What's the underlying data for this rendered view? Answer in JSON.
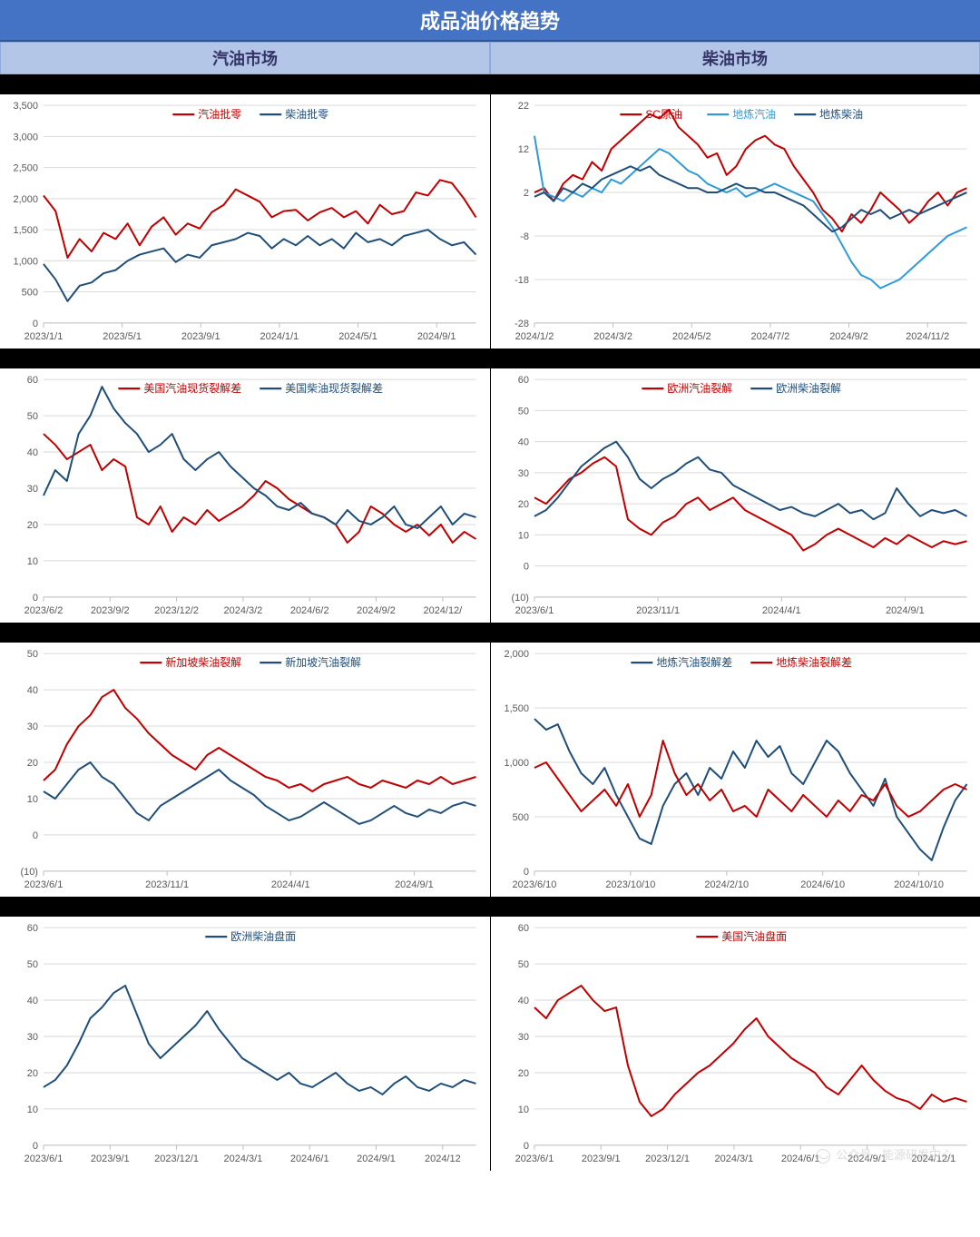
{
  "mainTitle": "成品油价格趋势",
  "subHeaders": {
    "left": "汽油市场",
    "right": "柴油市场"
  },
  "watermark": "公众号 · 能源研发中心",
  "colors": {
    "red": "#c00000",
    "blue": "#1f4e79",
    "lightblue": "#2e9bd6",
    "grid": "#d9d9d9",
    "axis": "#bfbfbf",
    "text": "#595959",
    "negRed": "#c00000"
  },
  "charts": [
    {
      "id": "c1",
      "ymin": 0,
      "ymax": 3500,
      "ystep": 500,
      "xticks": [
        "2023/1/1",
        "2023/5/1",
        "2023/9/1",
        "2024/1/1",
        "2024/5/1",
        "2024/9/1"
      ],
      "series": [
        {
          "name": "汽油批零",
          "color": "#c00000",
          "pts": [
            2050,
            1800,
            1050,
            1350,
            1150,
            1450,
            1350,
            1600,
            1250,
            1550,
            1700,
            1420,
            1600,
            1520,
            1780,
            1900,
            2150,
            2050,
            1950,
            1700,
            1800,
            1820,
            1650,
            1780,
            1850,
            1700,
            1800,
            1600,
            1900,
            1750,
            1800,
            2100,
            2050,
            2300,
            2250,
            2000,
            1700
          ]
        },
        {
          "name": "柴油批零",
          "color": "#1f4e79",
          "pts": [
            950,
            700,
            350,
            600,
            650,
            800,
            850,
            1000,
            1100,
            1150,
            1200,
            980,
            1100,
            1050,
            1250,
            1300,
            1350,
            1450,
            1400,
            1200,
            1350,
            1250,
            1400,
            1250,
            1350,
            1200,
            1450,
            1300,
            1350,
            1250,
            1400,
            1450,
            1500,
            1350,
            1250,
            1300,
            1100
          ]
        }
      ]
    },
    {
      "id": "c2",
      "ymin": -28,
      "ymax": 22,
      "ystep": 10,
      "yticks": [
        -28,
        -18,
        -8,
        2,
        12,
        22
      ],
      "xticks": [
        "2024/1/2",
        "2024/3/2",
        "2024/5/2",
        "2024/7/2",
        "2024/9/2",
        "2024/11/2"
      ],
      "series": [
        {
          "name": "SC原油",
          "color": "#c00000",
          "pts": [
            2,
            3,
            0,
            4,
            6,
            5,
            9,
            7,
            12,
            14,
            16,
            18,
            20,
            19,
            21,
            17,
            15,
            13,
            10,
            11,
            6,
            8,
            12,
            14,
            15,
            13,
            12,
            8,
            5,
            2,
            -2,
            -4,
            -7,
            -3,
            -5,
            -2,
            2,
            0,
            -2,
            -5,
            -3,
            0,
            2,
            -1,
            2,
            3
          ]
        },
        {
          "name": "地炼汽油",
          "color": "#2e9bd6",
          "pts": [
            15,
            2,
            1,
            0,
            2,
            1,
            3,
            2,
            5,
            4,
            6,
            8,
            10,
            12,
            11,
            9,
            7,
            6,
            4,
            3,
            2,
            3,
            1,
            2,
            3,
            4,
            3,
            2,
            1,
            0,
            -3,
            -6,
            -10,
            -14,
            -17,
            -18,
            -20,
            -19,
            -18,
            -16,
            -14,
            -12,
            -10,
            -8,
            -7,
            -6
          ]
        },
        {
          "name": "地炼柴油",
          "color": "#1f4e79",
          "pts": [
            1,
            2,
            0,
            3,
            2,
            4,
            3,
            5,
            6,
            7,
            8,
            7,
            8,
            6,
            5,
            4,
            3,
            3,
            2,
            2,
            3,
            4,
            3,
            3,
            2,
            2,
            1,
            0,
            -1,
            -3,
            -5,
            -7,
            -6,
            -4,
            -2,
            -3,
            -2,
            -4,
            -3,
            -2,
            -3,
            -2,
            -1,
            0,
            1,
            2
          ]
        }
      ]
    },
    {
      "id": "c3",
      "ymin": 0,
      "ymax": 60,
      "ystep": 10,
      "xticks": [
        "2023/6/2",
        "2023/9/2",
        "2023/12/2",
        "2024/3/2",
        "2024/6/2",
        "2024/9/2",
        "2024/12/"
      ],
      "series": [
        {
          "name": "美国汽油现货裂解差",
          "color": "#c00000",
          "pts": [
            45,
            42,
            38,
            40,
            42,
            35,
            38,
            36,
            22,
            20,
            25,
            18,
            22,
            20,
            24,
            21,
            23,
            25,
            28,
            32,
            30,
            27,
            25,
            23,
            22,
            20,
            15,
            18,
            25,
            23,
            20,
            18,
            20,
            17,
            20,
            15,
            18,
            16
          ]
        },
        {
          "name": "美国柴油现货裂解差",
          "color": "#1f4e79",
          "pts": [
            28,
            35,
            32,
            45,
            50,
            58,
            52,
            48,
            45,
            40,
            42,
            45,
            38,
            35,
            38,
            40,
            36,
            33,
            30,
            28,
            25,
            24,
            26,
            23,
            22,
            20,
            24,
            21,
            20,
            22,
            25,
            20,
            19,
            22,
            25,
            20,
            23,
            22
          ]
        }
      ]
    },
    {
      "id": "c4",
      "ymin": -10,
      "ymax": 60,
      "ystep": 10,
      "negBottom": true,
      "xticks": [
        "2023/6/1",
        "2023/11/1",
        "2024/4/1",
        "2024/9/1"
      ],
      "series": [
        {
          "name": "欧洲汽油裂解",
          "color": "#c00000",
          "pts": [
            22,
            20,
            24,
            28,
            30,
            33,
            35,
            32,
            15,
            12,
            10,
            14,
            16,
            20,
            22,
            18,
            20,
            22,
            18,
            16,
            14,
            12,
            10,
            5,
            7,
            10,
            12,
            10,
            8,
            6,
            9,
            7,
            10,
            8,
            6,
            8,
            7,
            8
          ]
        },
        {
          "name": "欧洲柴油裂解",
          "color": "#1f4e79",
          "pts": [
            16,
            18,
            22,
            27,
            32,
            35,
            38,
            40,
            35,
            28,
            25,
            28,
            30,
            33,
            35,
            31,
            30,
            26,
            24,
            22,
            20,
            18,
            19,
            17,
            16,
            18,
            20,
            17,
            18,
            15,
            17,
            25,
            20,
            16,
            18,
            17,
            18,
            16
          ]
        }
      ]
    },
    {
      "id": "c5",
      "ymin": -10,
      "ymax": 50,
      "ystep": 10,
      "negBottom": true,
      "xticks": [
        "2023/6/1",
        "2023/11/1",
        "2024/4/1",
        "2024/9/1"
      ],
      "series": [
        {
          "name": "新加坡柴油裂解",
          "color": "#c00000",
          "pts": [
            15,
            18,
            25,
            30,
            33,
            38,
            40,
            35,
            32,
            28,
            25,
            22,
            20,
            18,
            22,
            24,
            22,
            20,
            18,
            16,
            15,
            13,
            14,
            12,
            14,
            15,
            16,
            14,
            13,
            15,
            14,
            13,
            15,
            14,
            16,
            14,
            15,
            16
          ]
        },
        {
          "name": "新加坡汽油裂解",
          "color": "#1f4e79",
          "pts": [
            12,
            10,
            14,
            18,
            20,
            16,
            14,
            10,
            6,
            4,
            8,
            10,
            12,
            14,
            16,
            18,
            15,
            13,
            11,
            8,
            6,
            4,
            5,
            7,
            9,
            7,
            5,
            3,
            4,
            6,
            8,
            6,
            5,
            7,
            6,
            8,
            9,
            8
          ]
        }
      ]
    },
    {
      "id": "c6",
      "ymin": 0,
      "ymax": 2000,
      "ystep": 500,
      "xticks": [
        "2023/6/10",
        "2023/10/10",
        "2024/2/10",
        "2024/6/10",
        "2024/10/10"
      ],
      "series": [
        {
          "name": "地炼汽油裂解差",
          "color": "#1f4e79",
          "pts": [
            1400,
            1300,
            1350,
            1100,
            900,
            800,
            950,
            700,
            500,
            300,
            250,
            600,
            800,
            900,
            700,
            950,
            850,
            1100,
            950,
            1200,
            1050,
            1150,
            900,
            800,
            1000,
            1200,
            1100,
            900,
            750,
            600,
            850,
            500,
            350,
            200,
            100,
            400,
            650,
            800
          ]
        },
        {
          "name": "地炼柴油裂解差",
          "color": "#c00000",
          "pts": [
            950,
            1000,
            850,
            700,
            550,
            650,
            750,
            600,
            800,
            500,
            700,
            1200,
            900,
            700,
            800,
            650,
            750,
            550,
            600,
            500,
            750,
            650,
            550,
            700,
            600,
            500,
            650,
            550,
            700,
            650,
            800,
            600,
            500,
            550,
            650,
            750,
            800,
            750
          ]
        }
      ]
    },
    {
      "id": "c7",
      "ymin": 0,
      "ymax": 60,
      "ystep": 10,
      "xticks": [
        "2023/6/1",
        "2023/9/1",
        "2023/12/1",
        "2024/3/1",
        "2024/6/1",
        "2024/9/1",
        "2024/12"
      ],
      "series": [
        {
          "name": "欧洲柴油盘面",
          "color": "#1f4e79",
          "pts": [
            16,
            18,
            22,
            28,
            35,
            38,
            42,
            44,
            36,
            28,
            24,
            27,
            30,
            33,
            37,
            32,
            28,
            24,
            22,
            20,
            18,
            20,
            17,
            16,
            18,
            20,
            17,
            15,
            16,
            14,
            17,
            19,
            16,
            15,
            17,
            16,
            18,
            17
          ]
        }
      ]
    },
    {
      "id": "c8",
      "ymin": 0,
      "ymax": 60,
      "ystep": 10,
      "xticks": [
        "2023/6/1",
        "2023/9/1",
        "2023/12/1",
        "2024/3/1",
        "2024/6/1",
        "2024/9/1",
        "2024/12/1"
      ],
      "series": [
        {
          "name": "美国汽油盘面",
          "color": "#c00000",
          "pts": [
            38,
            35,
            40,
            42,
            44,
            40,
            37,
            38,
            22,
            12,
            8,
            10,
            14,
            17,
            20,
            22,
            25,
            28,
            32,
            35,
            30,
            27,
            24,
            22,
            20,
            16,
            14,
            18,
            22,
            18,
            15,
            13,
            12,
            10,
            14,
            12,
            13,
            12
          ]
        }
      ]
    }
  ]
}
